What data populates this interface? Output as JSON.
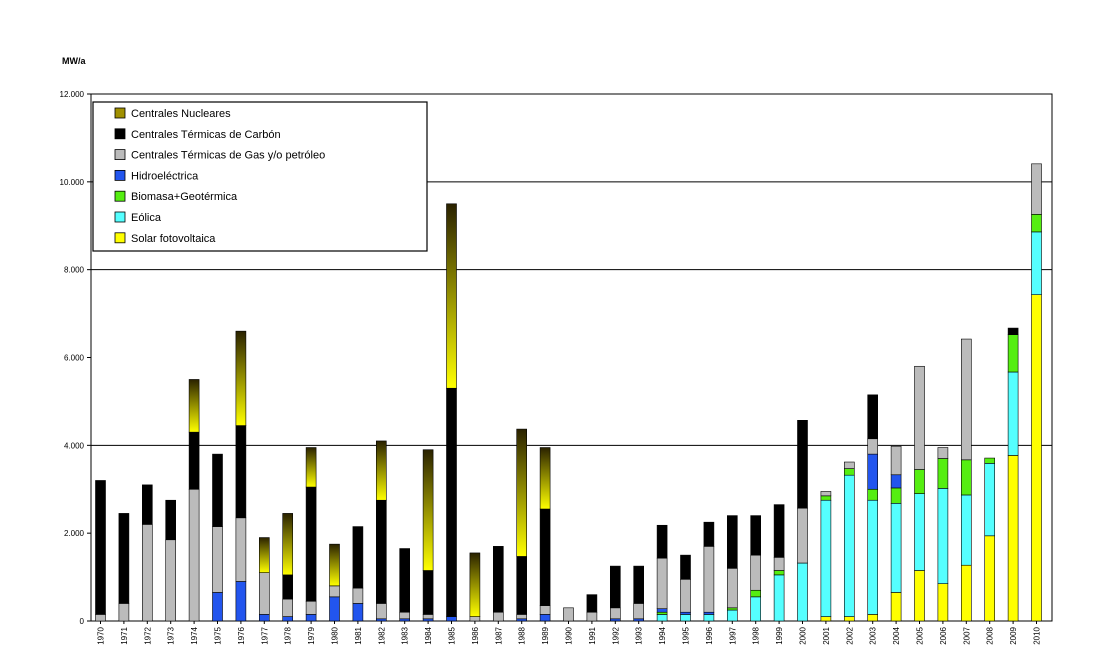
{
  "chart_data": {
    "type": "bar",
    "stacked": true,
    "ylabel": "MW/a",
    "xlabel": "",
    "ylim": [
      0,
      12000
    ],
    "y_ticks": [
      0,
      2000,
      4000,
      6000,
      8000,
      10000,
      12000
    ],
    "y_tick_labels": [
      "0",
      "2.000",
      "4.000",
      "6.000",
      "8.000",
      "10.000",
      "12.000"
    ],
    "gridlines": [
      4000,
      8000,
      10000
    ],
    "legend_position": "top-left",
    "categories": [
      "1970",
      "1971",
      "1972",
      "1973",
      "1974",
      "1975",
      "1976",
      "1977",
      "1978",
      "1979",
      "1980",
      "1981",
      "1982",
      "1983",
      "1984",
      "1985",
      "1986",
      "1987",
      "1988",
      "1989",
      "1990",
      "1991",
      "1992",
      "1993",
      "1994",
      "1995",
      "1996",
      "1997",
      "1998",
      "1999",
      "2000",
      "2001",
      "2002",
      "2003",
      "2004",
      "2005",
      "2006",
      "2007",
      "2008",
      "2009",
      "2010"
    ],
    "series": [
      {
        "name": "Solar fotovoltaica",
        "color": "#ffff00",
        "gradient": false,
        "values": [
          0,
          0,
          0,
          0,
          0,
          0,
          0,
          0,
          0,
          0,
          0,
          0,
          0,
          0,
          0,
          0,
          0,
          0,
          0,
          0,
          0,
          0,
          0,
          0,
          0,
          0,
          0,
          0,
          0,
          0,
          0,
          100,
          100,
          150,
          650,
          1150,
          850,
          1270,
          1940,
          3770,
          7430
        ]
      },
      {
        "name": "Eólica",
        "color": "#55ffff",
        "gradient": false,
        "values": [
          0,
          0,
          0,
          0,
          0,
          0,
          0,
          0,
          0,
          0,
          0,
          0,
          0,
          0,
          0,
          0,
          0,
          0,
          0,
          0,
          0,
          0,
          0,
          0,
          150,
          150,
          150,
          250,
          550,
          1050,
          1320,
          2650,
          3220,
          2600,
          2030,
          1750,
          2170,
          1600,
          1650,
          1900,
          1430
        ]
      },
      {
        "name": "Biomasa+Geotérmica",
        "color": "#55ee11",
        "gradient": false,
        "values": [
          0,
          0,
          0,
          0,
          0,
          0,
          0,
          0,
          0,
          0,
          0,
          0,
          0,
          0,
          0,
          0,
          0,
          0,
          0,
          0,
          0,
          0,
          0,
          0,
          50,
          0,
          0,
          50,
          150,
          100,
          0,
          100,
          150,
          250,
          350,
          550,
          680,
          800,
          120,
          850,
          400
        ]
      },
      {
        "name": "Hidroeléctrica",
        "color": "#2255ee",
        "gradient": false,
        "values": [
          0,
          0,
          0,
          0,
          0,
          650,
          900,
          150,
          100,
          150,
          550,
          400,
          50,
          50,
          50,
          100,
          0,
          0,
          50,
          150,
          0,
          0,
          50,
          50,
          80,
          50,
          50,
          0,
          0,
          0,
          0,
          0,
          0,
          800,
          300,
          0,
          0,
          0,
          0,
          0,
          0
        ]
      },
      {
        "name": "Centrales Térmicas de Gas y/o petróleo",
        "color": "#bbbbbb",
        "gradient": false,
        "values": [
          150,
          400,
          2200,
          1850,
          3000,
          1500,
          1450,
          950,
          400,
          300,
          250,
          350,
          350,
          150,
          100,
          0,
          100,
          200,
          100,
          200,
          300,
          200,
          250,
          350,
          1150,
          750,
          1500,
          900,
          800,
          300,
          1250,
          100,
          150,
          350,
          650,
          2350,
          250,
          2750,
          0,
          0,
          1150
        ]
      },
      {
        "name": "Centrales Térmicas de Carbón",
        "color": "#000000",
        "gradient": false,
        "values": [
          3050,
          2050,
          900,
          900,
          1300,
          1650,
          2100,
          0,
          550,
          2600,
          0,
          1400,
          2350,
          1450,
          1000,
          5200,
          0,
          1500,
          1320,
          2200,
          0,
          400,
          950,
          850,
          750,
          550,
          550,
          1200,
          900,
          1200,
          2000,
          0,
          0,
          1000,
          0,
          0,
          0,
          0,
          0,
          150,
          0
        ]
      },
      {
        "name": "Centrales Nucleares",
        "color": "#a09000",
        "gradient": true,
        "values": [
          0,
          0,
          0,
          0,
          1200,
          0,
          2150,
          800,
          1400,
          900,
          950,
          0,
          1350,
          0,
          2750,
          4200,
          1450,
          0,
          2900,
          1400,
          0,
          0,
          0,
          0,
          0,
          0,
          0,
          0,
          0,
          0,
          0,
          0,
          0,
          0,
          0,
          0,
          0,
          0,
          0,
          0,
          0
        ]
      }
    ],
    "legend_order": [
      "Centrales Nucleares",
      "Centrales Térmicas de Carbón",
      "Centrales Térmicas de Gas y/o petróleo",
      "Hidroeléctrica",
      "Biomasa+Geotérmica",
      "Eólica",
      "Solar fotovoltaica"
    ]
  }
}
